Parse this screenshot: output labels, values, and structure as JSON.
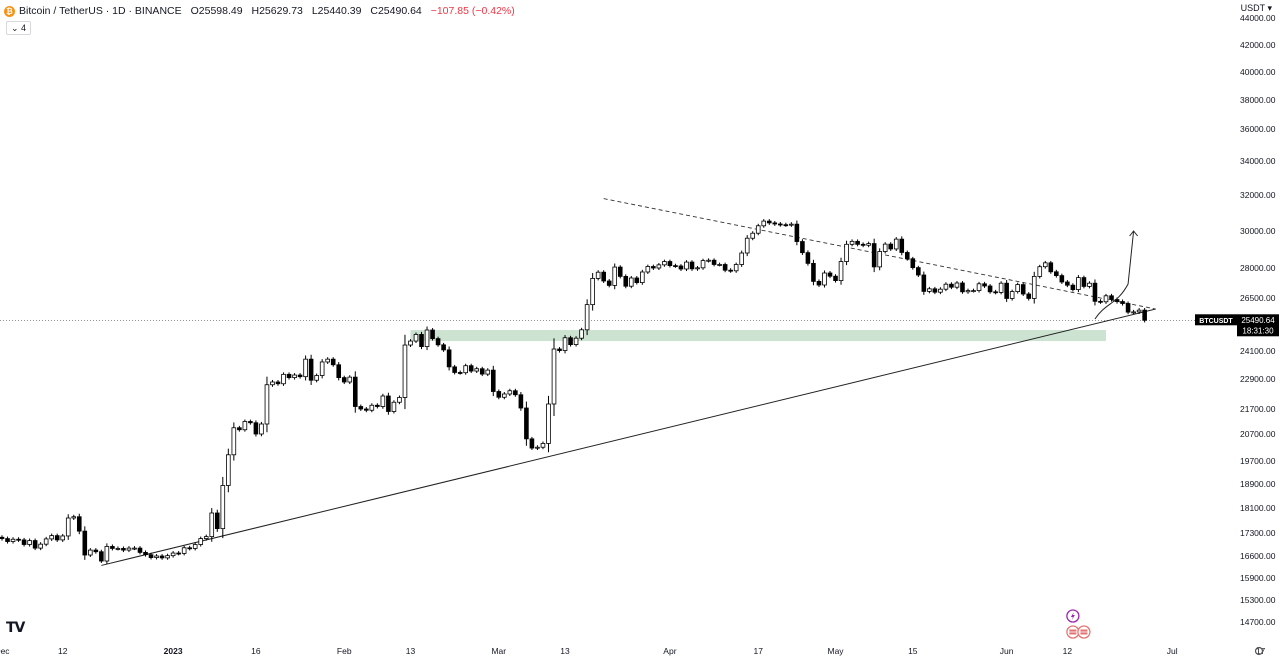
{
  "header": {
    "symbol_title": "Bitcoin / TetherUS · 1D · BINANCE",
    "logo_glyph": "₿",
    "open": "O25598.49",
    "high": "H25629.73",
    "low": "L25440.39",
    "close": "C25490.64",
    "change": "−107.85 (−0.42%)",
    "indicator_toggle": "⌄ 4",
    "currency": "USDT ▾"
  },
  "last_price": {
    "symbol": "BTCUSDT",
    "price": "25490.64",
    "countdown": "18:31:30",
    "value": 25490.64
  },
  "colors": {
    "up": "#ffffff",
    "down": "#000000",
    "zone": "#c8e0cc",
    "text": "#131722"
  },
  "chart_data": {
    "type": "candlestick",
    "y_ticks": [
      {
        "label": "44000.00",
        "value": 44000
      },
      {
        "label": "42000.00",
        "value": 42000
      },
      {
        "label": "40000.00",
        "value": 40000
      },
      {
        "label": "38000.00",
        "value": 38000
      },
      {
        "label": "36000.00",
        "value": 36000
      },
      {
        "label": "34000.00",
        "value": 34000
      },
      {
        "label": "32000.00",
        "value": 32000
      },
      {
        "label": "30000.00",
        "value": 30000
      },
      {
        "label": "28000.00",
        "value": 28000
      },
      {
        "label": "26500.00",
        "value": 26500
      },
      {
        "label": "24100.00",
        "value": 24100
      },
      {
        "label": "22900.00",
        "value": 22900
      },
      {
        "label": "21700.00",
        "value": 21700
      },
      {
        "label": "20700.00",
        "value": 20700
      },
      {
        "label": "19700.00",
        "value": 19700
      },
      {
        "label": "18900.00",
        "value": 18900
      },
      {
        "label": "18100.00",
        "value": 18100
      },
      {
        "label": "17300.00",
        "value": 17300
      },
      {
        "label": "16600.00",
        "value": 16600
      },
      {
        "label": "15900.00",
        "value": 15900
      },
      {
        "label": "15300.00",
        "value": 15300
      },
      {
        "label": "14700.00",
        "value": 14700
      }
    ],
    "x_ticks": [
      {
        "label": "Dec",
        "date": "2022-12-01"
      },
      {
        "label": "12",
        "date": "2022-12-12"
      },
      {
        "label": "2023",
        "date": "2023-01-01"
      },
      {
        "label": "16",
        "date": "2023-01-16"
      },
      {
        "label": "Feb",
        "date": "2023-02-01"
      },
      {
        "label": "13",
        "date": "2023-02-13"
      },
      {
        "label": "Mar",
        "date": "2023-03-01"
      },
      {
        "label": "13",
        "date": "2023-03-13"
      },
      {
        "label": "Apr",
        "date": "2023-04-01"
      },
      {
        "label": "17",
        "date": "2023-04-17"
      },
      {
        "label": "May",
        "date": "2023-05-01"
      },
      {
        "label": "15",
        "date": "2023-05-15"
      },
      {
        "label": "Jun",
        "date": "2023-06-01"
      },
      {
        "label": "12",
        "date": "2023-06-12"
      },
      {
        "label": "Jul",
        "date": "2023-07-01"
      },
      {
        "label": "17",
        "date": "2023-07-17"
      }
    ],
    "start_date": "2022-12-01",
    "closes": [
      17130,
      17040,
      17110,
      17090,
      16950,
      17070,
      16840,
      16960,
      17120,
      17220,
      17090,
      17210,
      17780,
      17820,
      17360,
      16630,
      16780,
      16730,
      16440,
      16890,
      16830,
      16830,
      16780,
      16840,
      16840,
      16710,
      16640,
      16550,
      16600,
      16540,
      16610,
      16690,
      16680,
      16850,
      16830,
      16950,
      17130,
      17190,
      17940,
      17440,
      18850,
      19930,
      20950,
      20870,
      21200,
      21150,
      20700,
      21100,
      22670,
      22780,
      22710,
      23100,
      22960,
      23070,
      23000,
      23750,
      22850,
      23050,
      23630,
      23750,
      23510,
      22960,
      22780,
      22980,
      21800,
      21700,
      21650,
      21850,
      21800,
      22220,
      21600,
      21970,
      22160,
      24370,
      24550,
      24850,
      24300,
      25050,
      24660,
      24380,
      24150,
      23420,
      23180,
      23170,
      23470,
      23240,
      23340,
      23110,
      23280,
      22400,
      22170,
      22300,
      22430,
      22270,
      21740,
      20520,
      20180,
      20210,
      20350,
      21900,
      24190,
      24120,
      24700,
      24390,
      24680,
      25060,
      26200,
      27480,
      27790,
      27350,
      27130,
      28050,
      27580,
      27090,
      27500,
      27270,
      27800,
      28080,
      28000,
      28170,
      28350,
      28130,
      28110,
      27950,
      28320,
      27960,
      28010,
      28400,
      28420,
      28190,
      28190,
      27890,
      27860,
      28190,
      28810,
      29610,
      29880,
      30290,
      30550,
      30450,
      30390,
      30350,
      30340,
      30380,
      29430,
      28830,
      28250,
      27330,
      27150,
      27750,
      27590,
      27370,
      28350,
      29280,
      29440,
      29280,
      29230,
      29320,
      28060,
      28890,
      29290,
      29030,
      29560,
      28840,
      28500,
      28020,
      27650,
      26830,
      26960,
      26790,
      26940,
      27190,
      27040,
      27250,
      26810,
      26870,
      26870,
      27210,
      27100,
      26810,
      26780,
      27240,
      26480,
      26820,
      27170,
      26700,
      26480,
      27580,
      28070,
      28280,
      27810,
      27620,
      27300,
      27140,
      26920,
      27520,
      27080,
      27240,
      26350,
      26330,
      26610,
      26430,
      26340,
      26250,
      25860,
      25870,
      25950,
      25490
    ],
    "support_zone": {
      "from": 24550,
      "to": 25050,
      "start": "2023-02-13",
      "end": "2023-06-19"
    },
    "ascending_trendline": {
      "from": {
        "date": "2022-12-19",
        "value": 16300
      },
      "to": {
        "date": "2023-06-28",
        "value": 26000
      }
    },
    "descending_trendline": {
      "from": {
        "date": "2023-03-20",
        "value": 31800
      },
      "to": {
        "date": "2023-06-28",
        "value": 26000
      }
    },
    "projection_path": [
      {
        "date": "2023-06-17",
        "value": 25550
      },
      {
        "date": "2023-06-19",
        "value": 26300
      },
      {
        "date": "2023-06-21",
        "value": 26900
      },
      {
        "date": "2023-06-23",
        "value": 27200
      },
      {
        "date": "2023-06-24",
        "value": 30000
      }
    ],
    "event_icons": [
      {
        "name": "lightning-event-icon",
        "date": "2023-06-13",
        "color": "#9c27b0"
      },
      {
        "name": "us-flag-event-icon",
        "date": "2023-06-13",
        "color": "#e57373"
      },
      {
        "name": "us-flag-event-icon",
        "date": "2023-06-15",
        "color": "#e57373"
      }
    ],
    "ylim": [
      14000,
      44600
    ],
    "xlabel": "",
    "ylabel": ""
  },
  "branding": {
    "logo_text": "TV"
  }
}
